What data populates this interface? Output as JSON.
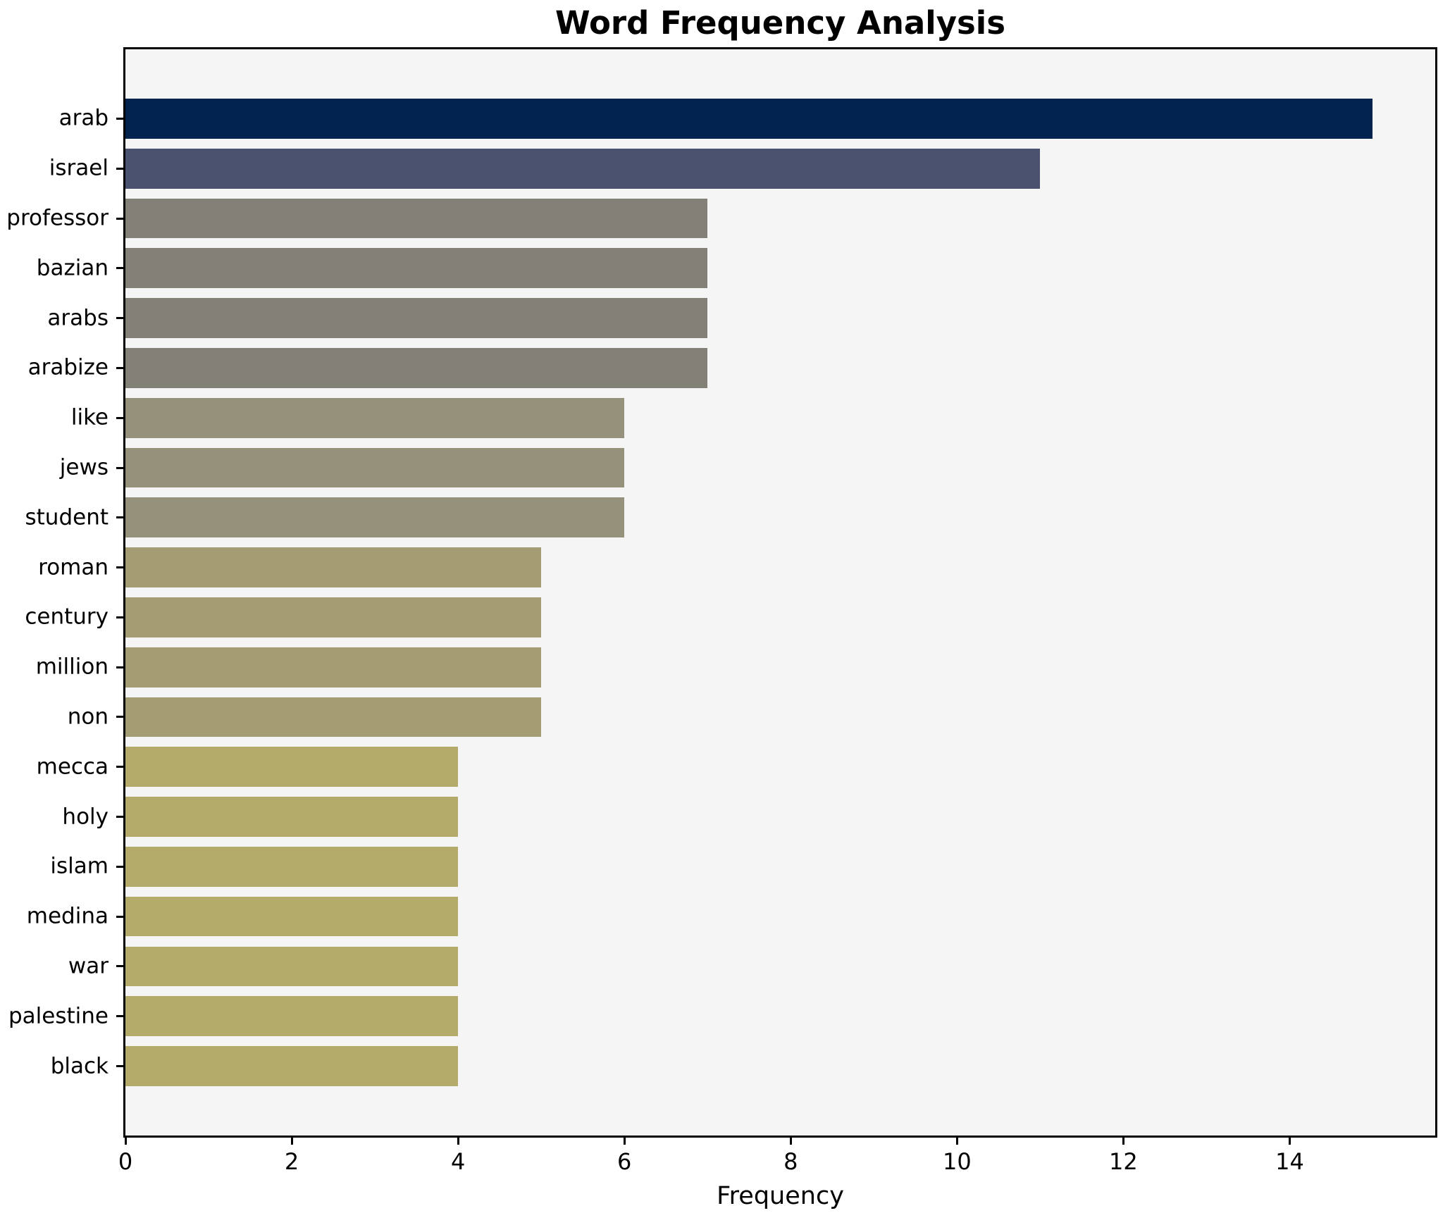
{
  "chart_data": {
    "type": "bar",
    "orientation": "horizontal",
    "title": "Word Frequency Analysis",
    "xlabel": "Frequency",
    "ylabel": "",
    "categories": [
      "arab",
      "israel",
      "professor",
      "bazian",
      "arabs",
      "arabize",
      "like",
      "jews",
      "student",
      "roman",
      "century",
      "million",
      "non",
      "mecca",
      "holy",
      "islam",
      "medina",
      "war",
      "palestine",
      "black"
    ],
    "values": [
      15,
      11,
      7,
      7,
      7,
      7,
      6,
      6,
      6,
      5,
      5,
      5,
      5,
      4,
      4,
      4,
      4,
      4,
      4,
      4
    ],
    "bar_colors": [
      "#02234e",
      "#4a5270",
      "#838077",
      "#838077",
      "#838077",
      "#838077",
      "#95917a",
      "#95917a",
      "#95917a",
      "#a49d73",
      "#a49d73",
      "#a49d73",
      "#a49d73",
      "#b4aa6a",
      "#b4aa6a",
      "#b4aa6a",
      "#b4aa6a",
      "#b4aa6a",
      "#b4aa6a",
      "#b4aa6a"
    ],
    "xlim": [
      0,
      15.75
    ],
    "xticks": [
      0,
      2,
      4,
      6,
      8,
      10,
      12,
      14
    ],
    "grid": false,
    "legend": null,
    "bar_rel_height": 0.8,
    "plot_bg": "#f5f5f6",
    "figure_bg": "#ffffff",
    "spine_color": "#000000",
    "text_color": "#000000"
  }
}
